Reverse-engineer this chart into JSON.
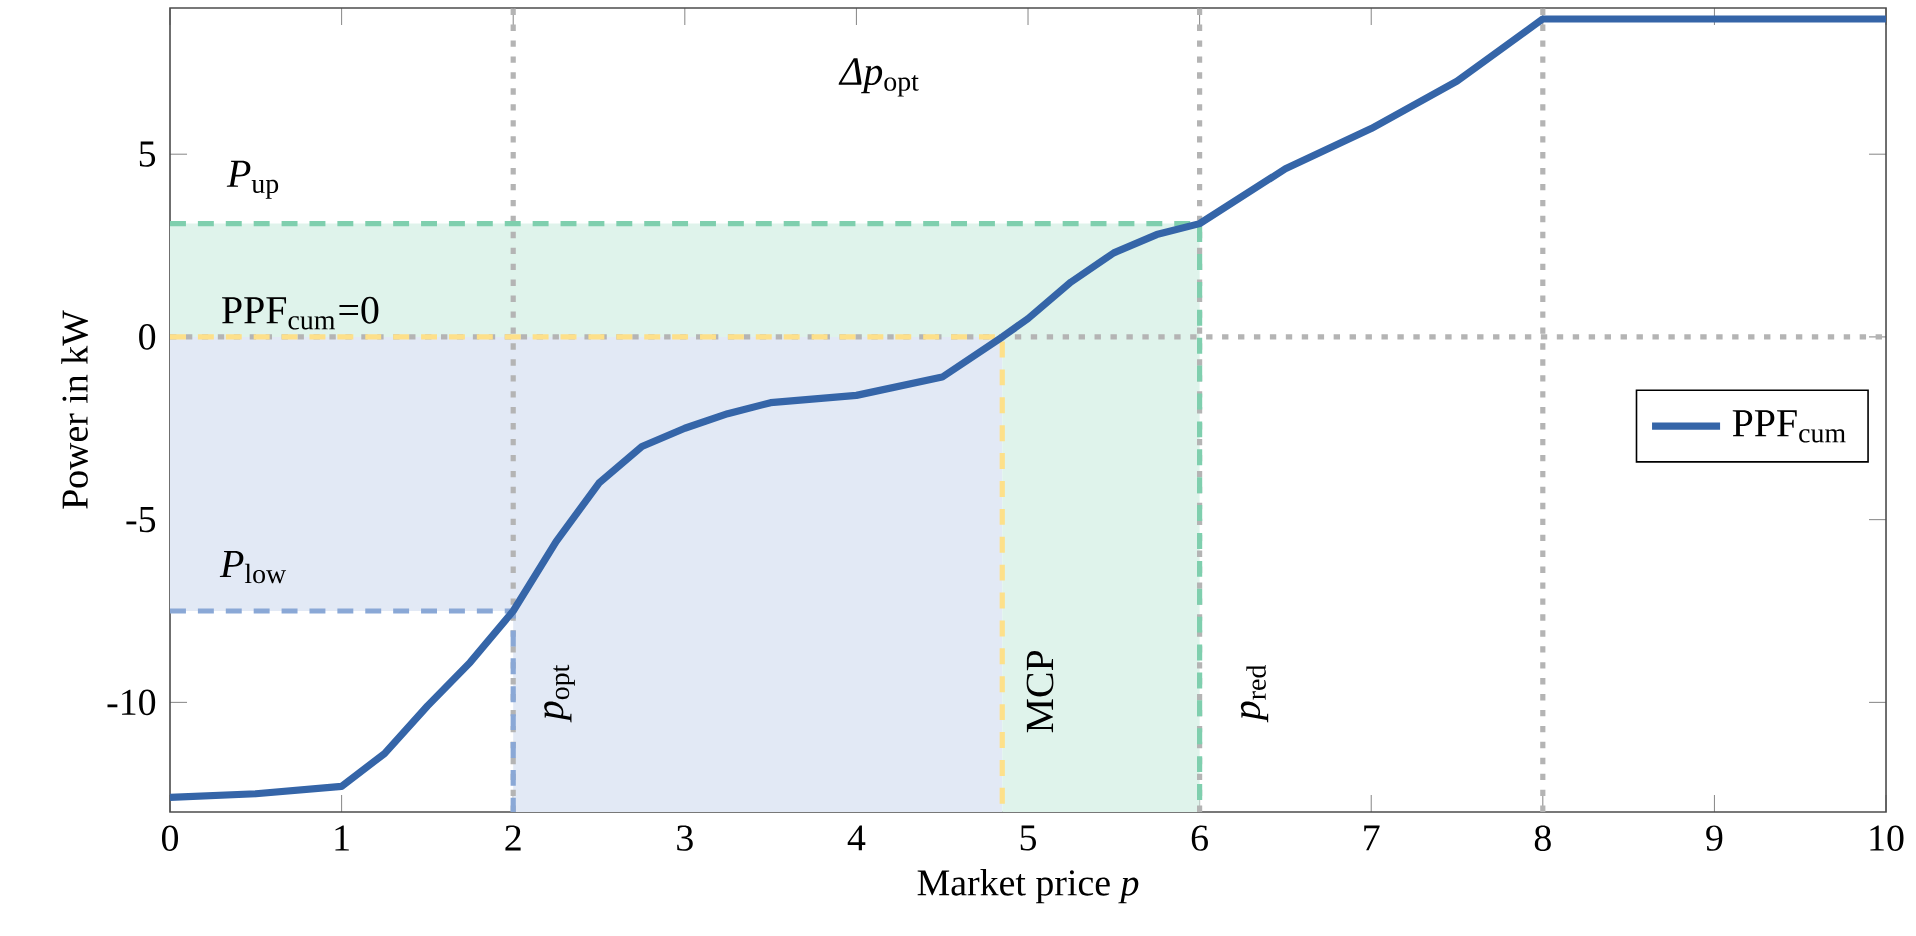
{
  "chart_data": {
    "type": "line",
    "xlabel": "Market price *p*",
    "ylabel": "Power in kW",
    "xlim": [
      0,
      10
    ],
    "ylim": [
      -13,
      9
    ],
    "xticks": [
      0,
      1,
      2,
      3,
      4,
      5,
      6,
      7,
      8,
      9,
      10
    ],
    "yticks": [
      -10,
      -5,
      0,
      5
    ],
    "legend": "right",
    "series": [
      {
        "color": "#8aa8d6",
        "line_style": "dashed",
        "x": [
          0,
          2,
          2,
          4.85
        ],
        "values": [
          -7.5,
          -7.5,
          -13,
          null
        ],
        "lower": [
          -7.5,
          -7.5,
          -13,
          -13
        ],
        "upper": [
          0,
          0,
          0,
          0
        ]
      },
      {
        "color": "#7fcfae",
        "line_style": "dashed",
        "x": [
          0,
          4.85,
          4.85,
          6,
          6
        ],
        "values": [
          3.1,
          3.1,
          3.1,
          3.1,
          -13
        ],
        "lower": [
          0,
          0,
          -13,
          -13,
          -13
        ],
        "upper": [
          3.1,
          3.1,
          3.1,
          3.1,
          3.1
        ]
      },
      {
        "color": "#fde08a",
        "line_style": "dashed",
        "x": [
          0,
          4.85,
          4.85
        ],
        "values": [
          0,
          0,
          -13
        ]
      },
      {
        "name": "PPF$_{cum}$",
        "color": "#3565a8",
        "line_style": "solid",
        "x": [
          0,
          0.5,
          1,
          1.25,
          1.5,
          1.75,
          2,
          2.25,
          2.5,
          2.75,
          3,
          3.25,
          3.5,
          4,
          4.5,
          4.85,
          5,
          5.25,
          5.5,
          5.75,
          6,
          6.5,
          7,
          7.5,
          8,
          10
        ],
        "values": [
          -12.6,
          -12.5,
          -12.3,
          -11.4,
          -10.1,
          -8.9,
          -7.5,
          -5.6,
          -4.0,
          -3.0,
          -2.5,
          -2.1,
          -1.8,
          -1.6,
          -1.1,
          0,
          0.5,
          1.5,
          2.3,
          2.8,
          3.1,
          4.6,
          5.7,
          7.0,
          8.7,
          8.7
        ]
      }
    ],
    "ref_lines": [
      {
        "axis": "y",
        "value": 0,
        "color": "#b4b4b4",
        "line_style": "dotted"
      },
      {
        "axis": "x",
        "value": 2,
        "color": "#b4b4b4",
        "line_style": "dotted"
      },
      {
        "axis": "x",
        "value": 6,
        "color": "#b4b4b4",
        "line_style": "dotted"
      },
      {
        "axis": "x",
        "value": 8,
        "color": "#b4b4b4",
        "line_style": "dotted"
      }
    ],
    "annotations": [
      "*P*$_{up}$",
      "PPF$_{cum}$=0",
      "*P*$_{low}$",
      "*Δp*$_{opt}$",
      "*p*$_{opt}$",
      "MCP",
      "*p*$_{red}$"
    ]
  }
}
